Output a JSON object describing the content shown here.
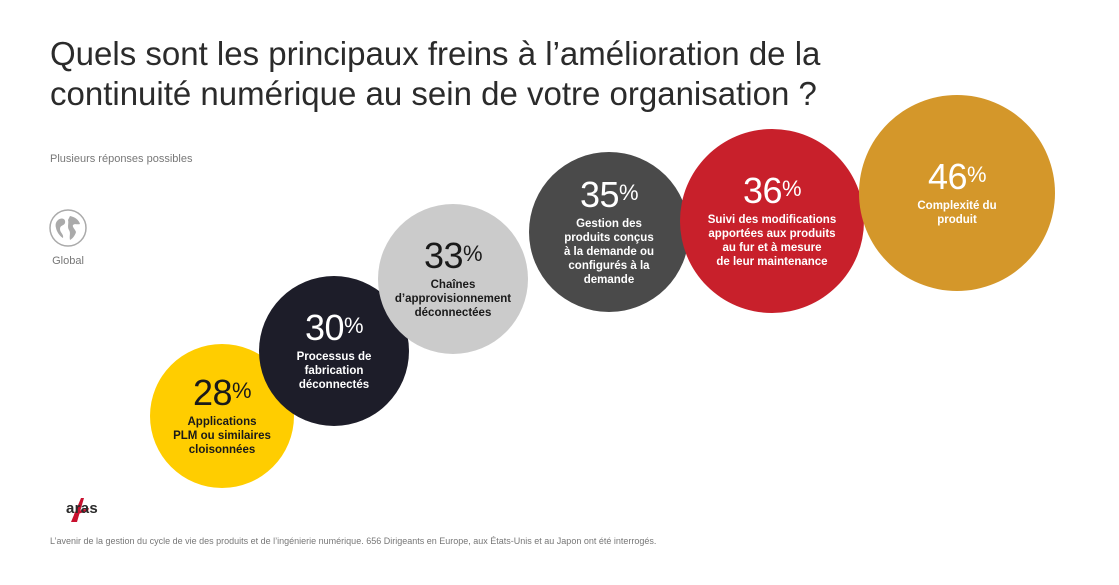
{
  "title": "Quels sont les principaux freins à l’amélioration de la continuité numérique au sein de votre organisation ?",
  "subtitle": "Plusieurs réponses possibles",
  "region": {
    "label": "Global",
    "icon": "globe-icon"
  },
  "brand": {
    "name": "aras",
    "icon": "aras-logo-icon",
    "color": "#c8102e"
  },
  "footnote": "L’avenir de la gestion du cycle de vie des produits et de l’ingénierie numérique. 656 Dirigeants en Europe, aux États-Unis et au Japon ont été interrogés.",
  "chart_data": {
    "type": "bubble",
    "unit": "%",
    "categories": [
      "Applications PLM ou similaires cloisonnées",
      "Processus de fabrication déconnectés",
      "Chaînes d’approvisionnement déconnectées",
      "Gestion des produits conçus à la demande ou configurés à la demande",
      "Suivi des modifications apportées aux produits au fur et à mesure de leur maintenance",
      "Complexité du produit"
    ],
    "values": [
      28,
      30,
      33,
      35,
      36,
      46
    ],
    "colors": [
      "#ffcd00",
      "#1d1d29",
      "#cbcbcb",
      "#4a4a4a",
      "#c8202b",
      "#d4972a"
    ],
    "text_colors": [
      "#1a1a1a",
      "#ffffff",
      "#1a1a1a",
      "#ffffff",
      "#ffffff",
      "#ffffff"
    ],
    "labels": [
      [
        "Applications",
        "PLM ou similaires",
        "cloisonnées"
      ],
      [
        "Processus de",
        "fabrication",
        "déconnectés"
      ],
      [
        "Chaînes",
        "d’approvisionnement",
        "déconnectées"
      ],
      [
        "Gestion des",
        "produits conçus",
        "à la demande ou",
        "configurés à la",
        "demande"
      ],
      [
        "Suivi des modifications",
        "apportées aux produits",
        "au fur et à mesure",
        "de leur maintenance"
      ],
      [
        "Complexité du",
        "produit"
      ]
    ]
  }
}
